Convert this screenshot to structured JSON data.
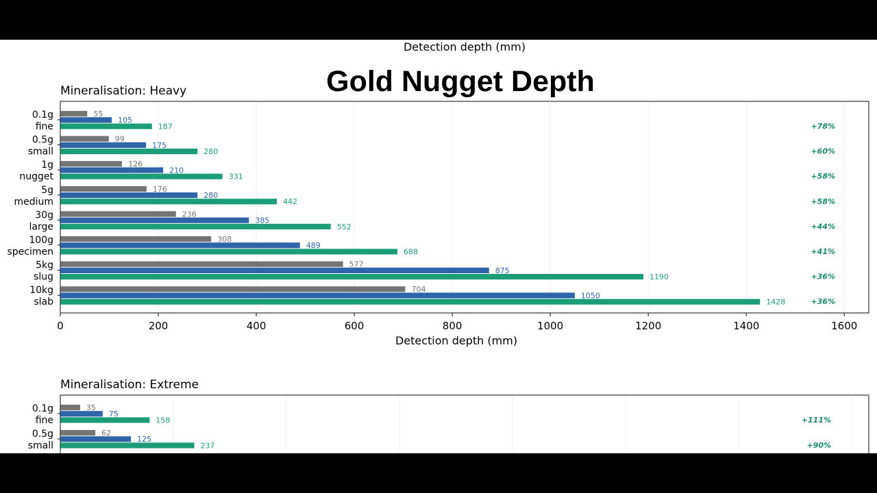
{
  "figure": {
    "title": "Gold Nugget Depth",
    "top_label": "Detection depth (mm)"
  },
  "colors": {
    "series_1": "#757575",
    "series_2": "#2e64a8",
    "series_3": "#1b9e77",
    "percent": "#1b8a68"
  },
  "chart_data": [
    {
      "type": "bar",
      "orientation": "horizontal",
      "title": "Mineralisation: Heavy",
      "xlabel": "Detection depth (mm)",
      "xlim": [
        0,
        1650
      ],
      "xticks": [
        0,
        200,
        400,
        600,
        800,
        1000,
        1200,
        1400,
        1600
      ],
      "grid": true,
      "categories": [
        "0.1g\nfine",
        "0.5g\nsmall",
        "1g\nnugget",
        "5g\nmedium",
        "30g\nlarge",
        "100g\nspecimen",
        "5kg\nslug",
        "10kg\nslab"
      ],
      "series": [
        {
          "values": [
            55,
            99,
            126,
            176,
            236,
            308,
            577,
            704
          ]
        },
        {
          "values": [
            105,
            175,
            210,
            280,
            385,
            489,
            875,
            1050
          ]
        },
        {
          "values": [
            187,
            280,
            331,
            442,
            552,
            688,
            1190,
            1428
          ]
        }
      ],
      "annotations": [
        "+78%",
        "+60%",
        "+58%",
        "+58%",
        "+44%",
        "+41%",
        "+36%",
        "+36%"
      ]
    },
    {
      "type": "bar",
      "orientation": "horizontal",
      "title": "Mineralisation: Extreme",
      "xlim": [
        0,
        1430
      ],
      "xticks": [
        0,
        200,
        400,
        600,
        800,
        1000,
        1200,
        1400
      ],
      "grid": true,
      "categories": [
        "0.1g\nfine",
        "0.5g\nsmall"
      ],
      "series": [
        {
          "values": [
            35,
            62
          ]
        },
        {
          "values": [
            75,
            125
          ]
        },
        {
          "values": [
            158,
            237
          ]
        }
      ],
      "annotations": [
        "+111%",
        "+90%"
      ]
    }
  ]
}
